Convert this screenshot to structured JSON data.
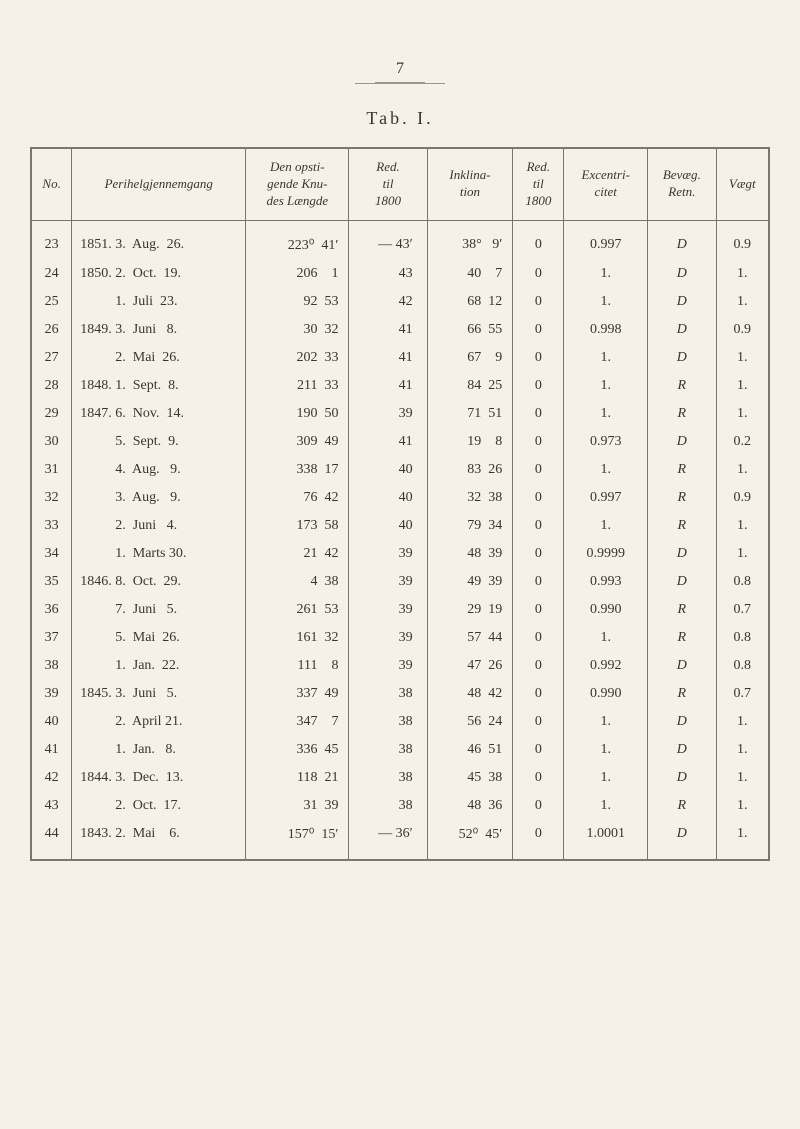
{
  "page_number": "7",
  "tab_title": "Tab. I.",
  "columns": [
    {
      "key": "no",
      "label": "No."
    },
    {
      "key": "peri",
      "label": "Perihelgjennemgang"
    },
    {
      "key": "knu",
      "label": "Den opsti-\ngende Knu-\ndes Længde"
    },
    {
      "key": "red1800",
      "label": "Red.\ntil\n1800"
    },
    {
      "key": "ink",
      "label": "Inklina-\ntion"
    },
    {
      "key": "redtil",
      "label": "Red.\ntil\n1800"
    },
    {
      "key": "exc",
      "label": "Excentri-\ncitet"
    },
    {
      "key": "bev",
      "label": "Bevæg.\nRetn."
    },
    {
      "key": "vaegt",
      "label": "Vægt"
    }
  ],
  "rows": [
    {
      "no": "23",
      "peri": "1851. 3.  Aug.  26.",
      "knu": "223⁰  41′",
      "red": "— 43′",
      "ink": "38°   9′",
      "redtil": "0",
      "exc": "0.997",
      "bev": "D",
      "vaegt": "0.9"
    },
    {
      "no": "24",
      "peri": "1850. 2.  Oct.  19.",
      "knu": "206    1",
      "red": "43",
      "ink": "40    7",
      "redtil": "0",
      "exc": "1.",
      "bev": "D",
      "vaegt": "1."
    },
    {
      "no": "25",
      "peri": "          1.  Juli  23.",
      "knu": "92  53",
      "red": "42",
      "ink": "68  12",
      "redtil": "0",
      "exc": "1.",
      "bev": "D",
      "vaegt": "1."
    },
    {
      "no": "26",
      "peri": "1849. 3.  Juni   8.",
      "knu": "30  32",
      "red": "41",
      "ink": "66  55",
      "redtil": "0",
      "exc": "0.998",
      "bev": "D",
      "vaegt": "0.9"
    },
    {
      "no": "27",
      "peri": "          2.  Mai  26.",
      "knu": "202  33",
      "red": "41",
      "ink": "67    9",
      "redtil": "0",
      "exc": "1.",
      "bev": "D",
      "vaegt": "1."
    },
    {
      "no": "28",
      "peri": "1848. 1.  Sept.  8.",
      "knu": "211  33",
      "red": "41",
      "ink": "84  25",
      "redtil": "0",
      "exc": "1.",
      "bev": "R",
      "vaegt": "1."
    },
    {
      "no": "29",
      "peri": "1847. 6.  Nov.  14.",
      "knu": "190  50",
      "red": "39",
      "ink": "71  51",
      "redtil": "0",
      "exc": "1.",
      "bev": "R",
      "vaegt": "1."
    },
    {
      "no": "30",
      "peri": "          5.  Sept.  9.",
      "knu": "309  49",
      "red": "41",
      "ink": "19    8",
      "redtil": "0",
      "exc": "0.973",
      "bev": "D",
      "vaegt": "0.2"
    },
    {
      "no": "31",
      "peri": "          4.  Aug.   9.",
      "knu": "338  17",
      "red": "40",
      "ink": "83  26",
      "redtil": "0",
      "exc": "1.",
      "bev": "R",
      "vaegt": "1."
    },
    {
      "no": "32",
      "peri": "          3.  Aug.   9.",
      "knu": "76  42",
      "red": "40",
      "ink": "32  38",
      "redtil": "0",
      "exc": "0.997",
      "bev": "R",
      "vaegt": "0.9"
    },
    {
      "no": "33",
      "peri": "          2.  Juni   4.",
      "knu": "173  58",
      "red": "40",
      "ink": "79  34",
      "redtil": "0",
      "exc": "1.",
      "bev": "R",
      "vaegt": "1."
    },
    {
      "no": "34",
      "peri": "          1.  Marts 30.",
      "knu": "21  42",
      "red": "39",
      "ink": "48  39",
      "redtil": "0",
      "exc": "0.9999",
      "bev": "D",
      "vaegt": "1."
    },
    {
      "no": "35",
      "peri": "1846. 8.  Oct.  29.",
      "knu": "4  38",
      "red": "39",
      "ink": "49  39",
      "redtil": "0",
      "exc": "0.993",
      "bev": "D",
      "vaegt": "0.8"
    },
    {
      "no": "36",
      "peri": "          7.  Juni   5.",
      "knu": "261  53",
      "red": "39",
      "ink": "29  19",
      "redtil": "0",
      "exc": "0.990",
      "bev": "R",
      "vaegt": "0.7"
    },
    {
      "no": "37",
      "peri": "          5.  Mai  26.",
      "knu": "161  32",
      "red": "39",
      "ink": "57  44",
      "redtil": "0",
      "exc": "1.",
      "bev": "R",
      "vaegt": "0.8"
    },
    {
      "no": "38",
      "peri": "          1.  Jan.  22.",
      "knu": "111    8",
      "red": "39",
      "ink": "47  26",
      "redtil": "0",
      "exc": "0.992",
      "bev": "D",
      "vaegt": "0.8"
    },
    {
      "no": "39",
      "peri": "1845. 3.  Juni   5.",
      "knu": "337  49",
      "red": "38",
      "ink": "48  42",
      "redtil": "0",
      "exc": "0.990",
      "bev": "R",
      "vaegt": "0.7"
    },
    {
      "no": "40",
      "peri": "          2.  April 21.",
      "knu": "347    7",
      "red": "38",
      "ink": "56  24",
      "redtil": "0",
      "exc": "1.",
      "bev": "D",
      "vaegt": "1."
    },
    {
      "no": "41",
      "peri": "          1.  Jan.   8.",
      "knu": "336  45",
      "red": "38",
      "ink": "46  51",
      "redtil": "0",
      "exc": "1.",
      "bev": "D",
      "vaegt": "1."
    },
    {
      "no": "42",
      "peri": "1844. 3.  Dec.  13.",
      "knu": "118  21",
      "red": "38",
      "ink": "45  38",
      "redtil": "0",
      "exc": "1.",
      "bev": "D",
      "vaegt": "1."
    },
    {
      "no": "43",
      "peri": "          2.  Oct.  17.",
      "knu": "31  39",
      "red": "38",
      "ink": "48  36",
      "redtil": "0",
      "exc": "1.",
      "bev": "R",
      "vaegt": "1."
    },
    {
      "no": "44",
      "peri": "1843. 2.  Mai    6.",
      "knu": "157⁰  15′",
      "red": "— 36′",
      "ink": "52⁰  45′",
      "redtil": "0",
      "exc": "1.0001",
      "bev": "D",
      "vaegt": "1."
    }
  ],
  "style": {
    "background": "#f5f0e8",
    "border_color": "#7a756f",
    "text_color": "#3a3530",
    "header_font_style": "italic",
    "body_font": "Times New Roman",
    "font_size_body": 14,
    "font_size_header": 13
  }
}
